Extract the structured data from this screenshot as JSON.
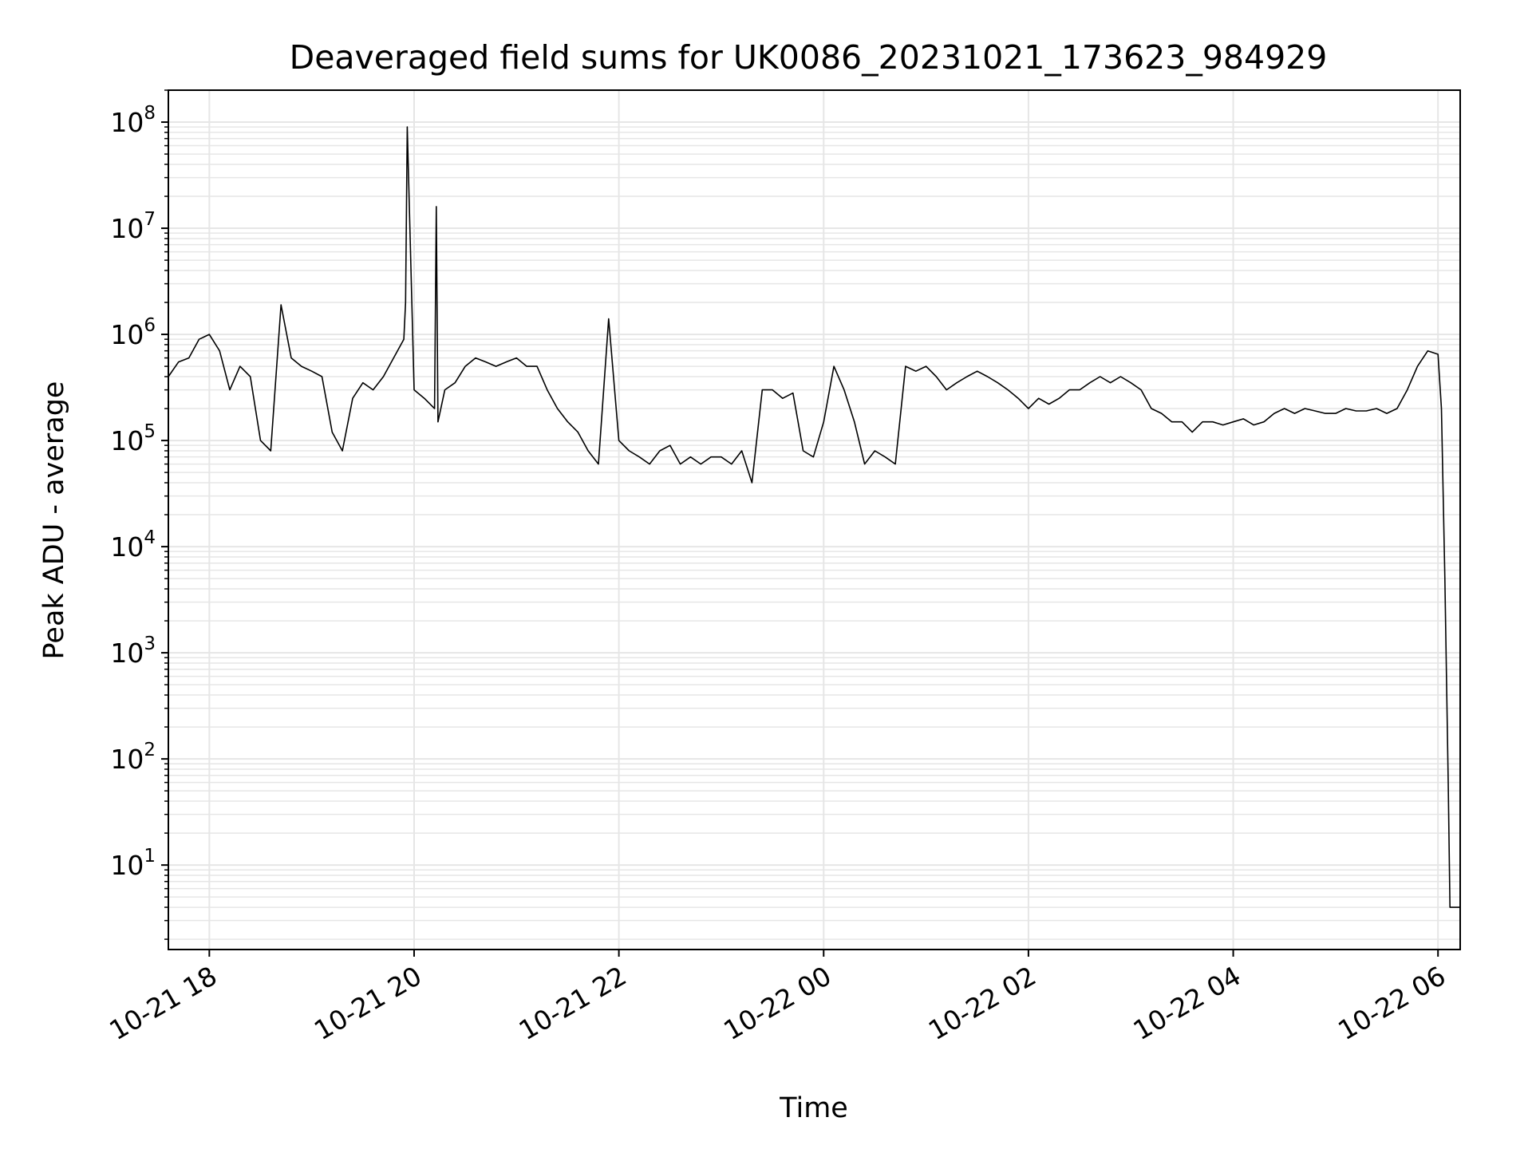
{
  "chart_data": {
    "type": "line",
    "title": "Deaveraged field sums for UK0086_20231021_173623_984929",
    "xlabel": "Time",
    "ylabel": "Peak ADU - average",
    "yscale": "log",
    "ylim": [
      1.6,
      200000000
    ],
    "xlim": [
      "2023-10-21 17:36",
      "2023-10-22 06:13"
    ],
    "grid": true,
    "line_color": "#000000",
    "grid_color": "#e6e6e6",
    "x_ticks": [
      {
        "t": "2023-10-21 18:00",
        "label": "10-21 18"
      },
      {
        "t": "2023-10-21 20:00",
        "label": "10-21 20"
      },
      {
        "t": "2023-10-21 22:00",
        "label": "10-21 22"
      },
      {
        "t": "2023-10-22 00:00",
        "label": "10-22 00"
      },
      {
        "t": "2023-10-22 02:00",
        "label": "10-22 02"
      },
      {
        "t": "2023-10-22 04:00",
        "label": "10-22 04"
      },
      {
        "t": "2023-10-22 06:00",
        "label": "10-22 06"
      }
    ],
    "y_ticks": [
      {
        "value": 10,
        "base": "10",
        "exp": "1"
      },
      {
        "value": 100,
        "base": "10",
        "exp": "2"
      },
      {
        "value": 1000,
        "base": "10",
        "exp": "3"
      },
      {
        "value": 10000,
        "base": "10",
        "exp": "4"
      },
      {
        "value": 100000,
        "base": "10",
        "exp": "5"
      },
      {
        "value": 1000000,
        "base": "10",
        "exp": "6"
      },
      {
        "value": 10000000,
        "base": "10",
        "exp": "7"
      },
      {
        "value": 100000000,
        "base": "10",
        "exp": "8"
      }
    ],
    "series": [
      {
        "x": [
          "2023-10-21 17:36",
          "2023-10-21 17:42",
          "2023-10-21 17:48",
          "2023-10-21 17:54",
          "2023-10-21 18:00",
          "2023-10-21 18:06",
          "2023-10-21 18:12",
          "2023-10-21 18:18",
          "2023-10-21 18:24",
          "2023-10-21 18:30",
          "2023-10-21 18:36",
          "2023-10-21 18:42",
          "2023-10-21 18:48",
          "2023-10-21 18:54",
          "2023-10-21 19:00",
          "2023-10-21 19:06",
          "2023-10-21 19:12",
          "2023-10-21 19:18",
          "2023-10-21 19:24",
          "2023-10-21 19:30",
          "2023-10-21 19:36",
          "2023-10-21 19:42",
          "2023-10-21 19:48",
          "2023-10-21 19:54",
          "2023-10-21 19:55",
          "2023-10-21 19:56",
          "2023-10-21 20:00",
          "2023-10-21 20:06",
          "2023-10-21 20:12",
          "2023-10-21 20:13",
          "2023-10-21 20:14",
          "2023-10-21 20:18",
          "2023-10-21 20:24",
          "2023-10-21 20:30",
          "2023-10-21 20:36",
          "2023-10-21 20:42",
          "2023-10-21 20:48",
          "2023-10-21 20:54",
          "2023-10-21 21:00",
          "2023-10-21 21:06",
          "2023-10-21 21:12",
          "2023-10-21 21:18",
          "2023-10-21 21:24",
          "2023-10-21 21:30",
          "2023-10-21 21:36",
          "2023-10-21 21:42",
          "2023-10-21 21:48",
          "2023-10-21 21:54",
          "2023-10-21 22:00",
          "2023-10-21 22:06",
          "2023-10-21 22:12",
          "2023-10-21 22:18",
          "2023-10-21 22:24",
          "2023-10-21 22:30",
          "2023-10-21 22:36",
          "2023-10-21 22:42",
          "2023-10-21 22:48",
          "2023-10-21 22:54",
          "2023-10-21 23:00",
          "2023-10-21 23:06",
          "2023-10-21 23:12",
          "2023-10-21 23:18",
          "2023-10-21 23:24",
          "2023-10-21 23:30",
          "2023-10-21 23:36",
          "2023-10-21 23:42",
          "2023-10-21 23:48",
          "2023-10-21 23:54",
          "2023-10-22 00:00",
          "2023-10-22 00:06",
          "2023-10-22 00:12",
          "2023-10-22 00:18",
          "2023-10-22 00:24",
          "2023-10-22 00:30",
          "2023-10-22 00:36",
          "2023-10-22 00:42",
          "2023-10-22 00:48",
          "2023-10-22 00:54",
          "2023-10-22 01:00",
          "2023-10-22 01:06",
          "2023-10-22 01:12",
          "2023-10-22 01:18",
          "2023-10-22 01:24",
          "2023-10-22 01:30",
          "2023-10-22 01:36",
          "2023-10-22 01:42",
          "2023-10-22 01:48",
          "2023-10-22 01:54",
          "2023-10-22 02:00",
          "2023-10-22 02:06",
          "2023-10-22 02:12",
          "2023-10-22 02:18",
          "2023-10-22 02:24",
          "2023-10-22 02:30",
          "2023-10-22 02:36",
          "2023-10-22 02:42",
          "2023-10-22 02:48",
          "2023-10-22 02:54",
          "2023-10-22 03:00",
          "2023-10-22 03:06",
          "2023-10-22 03:12",
          "2023-10-22 03:18",
          "2023-10-22 03:24",
          "2023-10-22 03:30",
          "2023-10-22 03:36",
          "2023-10-22 03:42",
          "2023-10-22 03:48",
          "2023-10-22 03:54",
          "2023-10-22 04:00",
          "2023-10-22 04:06",
          "2023-10-22 04:12",
          "2023-10-22 04:18",
          "2023-10-22 04:24",
          "2023-10-22 04:30",
          "2023-10-22 04:36",
          "2023-10-22 04:42",
          "2023-10-22 04:48",
          "2023-10-22 04:54",
          "2023-10-22 05:00",
          "2023-10-22 05:06",
          "2023-10-22 05:12",
          "2023-10-22 05:18",
          "2023-10-22 05:24",
          "2023-10-22 05:30",
          "2023-10-22 05:36",
          "2023-10-22 05:42",
          "2023-10-22 05:48",
          "2023-10-22 05:54",
          "2023-10-22 06:00",
          "2023-10-22 06:02",
          "2023-10-22 06:04",
          "2023-10-22 06:06",
          "2023-10-22 06:07",
          "2023-10-22 06:08",
          "2023-10-22 06:10",
          "2023-10-22 06:13"
        ],
        "y": [
          400000,
          550000,
          600000,
          900000,
          1000000,
          700000,
          300000,
          500000,
          400000,
          100000,
          80000,
          1900000,
          600000,
          500000,
          450000,
          400000,
          120000,
          80000,
          250000,
          350000,
          300000,
          400000,
          600000,
          900000,
          2000000,
          90000000,
          300000,
          250000,
          200000,
          16000000,
          150000,
          300000,
          350000,
          500000,
          600000,
          550000,
          500000,
          550000,
          600000,
          500000,
          500000,
          300000,
          200000,
          150000,
          120000,
          80000,
          60000,
          1400000,
          100000,
          80000,
          70000,
          60000,
          80000,
          90000,
          60000,
          70000,
          60000,
          70000,
          70000,
          60000,
          80000,
          40000,
          300000,
          300000,
          250000,
          280000,
          80000,
          70000,
          150000,
          500000,
          300000,
          150000,
          60000,
          80000,
          70000,
          60000,
          500000,
          450000,
          500000,
          400000,
          300000,
          350000,
          400000,
          450000,
          400000,
          350000,
          300000,
          250000,
          200000,
          250000,
          220000,
          250000,
          300000,
          300000,
          350000,
          400000,
          350000,
          400000,
          350000,
          300000,
          200000,
          180000,
          150000,
          150000,
          120000,
          150000,
          150000,
          140000,
          150000,
          160000,
          140000,
          150000,
          180000,
          200000,
          180000,
          200000,
          190000,
          180000,
          180000,
          200000,
          190000,
          190000,
          200000,
          180000,
          200000,
          300000,
          500000,
          700000,
          650000,
          200000,
          5000,
          60,
          4,
          4,
          4,
          4
        ]
      }
    ]
  }
}
